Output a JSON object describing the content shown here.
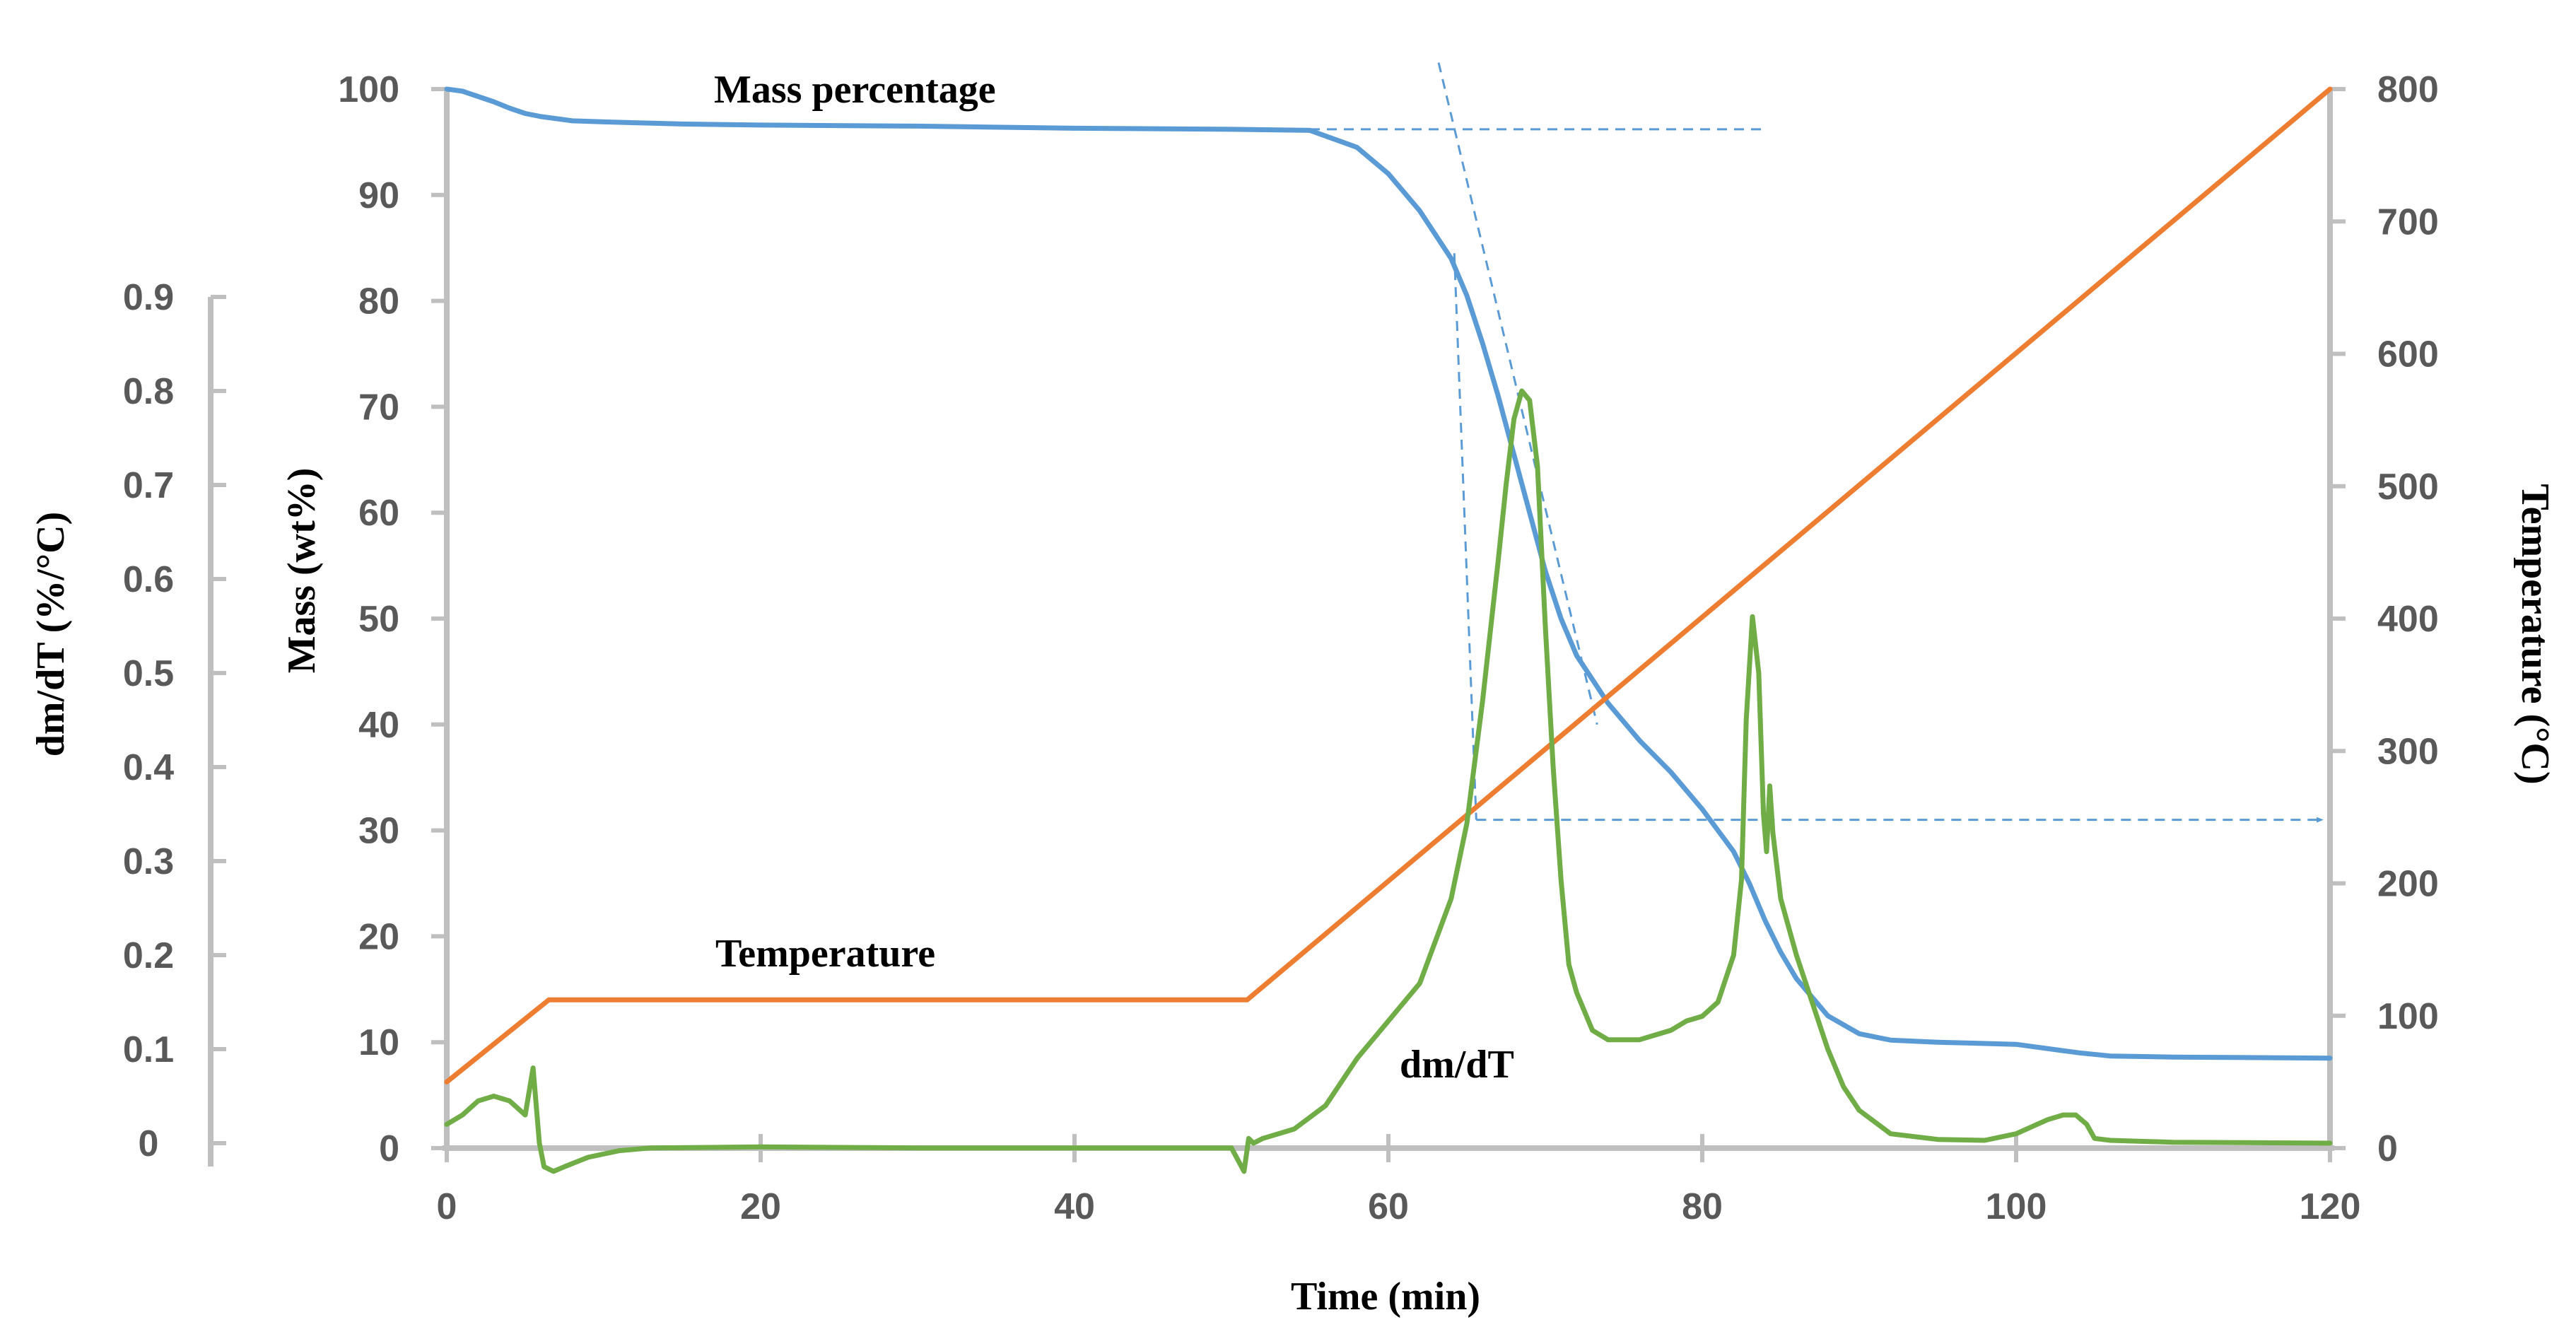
{
  "chart_data": {
    "type": "line",
    "title": "",
    "xlabel": "Time (min)",
    "ylabel_left": "Mass (wt%)",
    "ylabel_outer_left": "dm/dT (%/°C)",
    "ylabel_right": "Temperature (°C)",
    "xlim": [
      0,
      120
    ],
    "xticks": [
      0,
      20,
      40,
      60,
      80,
      100,
      120
    ],
    "ylim_mass": [
      0,
      100
    ],
    "yticks_mass": [
      0,
      10,
      20,
      30,
      40,
      50,
      60,
      70,
      80,
      90,
      100
    ],
    "ylim_dmdt": [
      0,
      0.9
    ],
    "yticks_dmdt": [
      "0",
      "0.1",
      "0.2",
      "0.3",
      "0.4",
      "0.5",
      "0.6",
      "0.7",
      "0.8",
      "0.9"
    ],
    "ylim_temp": [
      0,
      800
    ],
    "yticks_temp": [
      0,
      100,
      200,
      300,
      400,
      500,
      600,
      700,
      800
    ],
    "grid": false,
    "colors": {
      "mass": "#5b9bd5",
      "temperature": "#ed7d31",
      "dmdt": "#70ad47",
      "axis": "#bfbfbf",
      "text": "#595959"
    },
    "annotations": {
      "mass": "Mass percentage",
      "temperature": "Temperature",
      "dmdt": "dm/dT"
    },
    "series": [
      {
        "name": "Mass percentage",
        "axis": "mass",
        "x": [
          0,
          1,
          2,
          3,
          4,
          5,
          6,
          7,
          8,
          10,
          15,
          20,
          30,
          40,
          50,
          55,
          58,
          60,
          62,
          64,
          65,
          66,
          67,
          68,
          69,
          70,
          71,
          72,
          74,
          76,
          78,
          80,
          82,
          83,
          84,
          85,
          86,
          88,
          90,
          92,
          95,
          100,
          104,
          106,
          110,
          120
        ],
        "y": [
          100,
          99.8,
          99.3,
          98.8,
          98.2,
          97.7,
          97.4,
          97.2,
          97.0,
          96.9,
          96.7,
          96.6,
          96.5,
          96.3,
          96.2,
          96.1,
          94.5,
          92.0,
          88.5,
          84.0,
          80.5,
          76.0,
          71.0,
          65.5,
          60.0,
          54.5,
          50.0,
          46.5,
          42.0,
          38.5,
          35.5,
          32.0,
          28.0,
          25.0,
          21.5,
          18.5,
          16.0,
          12.5,
          10.8,
          10.2,
          10.0,
          9.8,
          9.0,
          8.7,
          8.6,
          8.5
        ]
      },
      {
        "name": "Temperature",
        "axis": "temp",
        "x": [
          0,
          6.5,
          51,
          120
        ],
        "y": [
          50,
          112,
          112,
          800
        ]
      },
      {
        "name": "dm/dT",
        "axis": "dmdt",
        "x": [
          0,
          1,
          2,
          3,
          4,
          5,
          5.5,
          5.9,
          6.2,
          6.8,
          7.5,
          9,
          11,
          13,
          20,
          30,
          40,
          50,
          50.8,
          51.1,
          51.4,
          52,
          54,
          56,
          58,
          60,
          62,
          64,
          65,
          66,
          67,
          67.5,
          68,
          68.5,
          69,
          69.5,
          70,
          70.5,
          71,
          71.5,
          72,
          73,
          74,
          75,
          76,
          77,
          78,
          79,
          80,
          81,
          82,
          82.5,
          82.8,
          83.2,
          83.6,
          83.9,
          84.1,
          84.3,
          84.5,
          85,
          86,
          87,
          88,
          89,
          90,
          92,
          95,
          98,
          100,
          102,
          103,
          103.8,
          104.5,
          105,
          106,
          110,
          120
        ],
        "y": [
          0.02,
          0.03,
          0.045,
          0.05,
          0.045,
          0.03,
          0.08,
          0.0,
          -0.025,
          -0.03,
          -0.025,
          -0.015,
          -0.008,
          -0.005,
          -0.004,
          -0.005,
          -0.005,
          -0.005,
          -0.03,
          0.005,
          0.0,
          0.005,
          0.015,
          0.04,
          0.09,
          0.13,
          0.17,
          0.26,
          0.34,
          0.47,
          0.62,
          0.7,
          0.77,
          0.8,
          0.79,
          0.72,
          0.55,
          0.4,
          0.28,
          0.19,
          0.16,
          0.12,
          0.11,
          0.11,
          0.11,
          0.115,
          0.12,
          0.13,
          0.135,
          0.15,
          0.2,
          0.28,
          0.45,
          0.56,
          0.5,
          0.35,
          0.31,
          0.38,
          0.33,
          0.26,
          0.2,
          0.15,
          0.1,
          0.06,
          0.035,
          0.01,
          0.004,
          0.003,
          0.01,
          0.025,
          0.03,
          0.03,
          0.02,
          0.005,
          0.003,
          0.001,
          0.0
        ]
      }
    ],
    "guide_lines": [
      {
        "name": "mass-baseline",
        "x": [
          55,
          84
        ],
        "y_mass": [
          96.2,
          96.2
        ]
      },
      {
        "name": "steep-tangent",
        "x": [
          63.2,
          73.3
        ],
        "y_mass": [
          102.5,
          40.0
        ]
      },
      {
        "name": "onset-drop",
        "x": [
          64.2,
          65.6
        ],
        "y_mass": [
          84.5,
          31.0
        ]
      },
      {
        "name": "onset-temperature-arrow",
        "x": [
          65.6,
          119.5
        ],
        "y_mass": [
          31.0,
          31.0
        ]
      }
    ]
  }
}
